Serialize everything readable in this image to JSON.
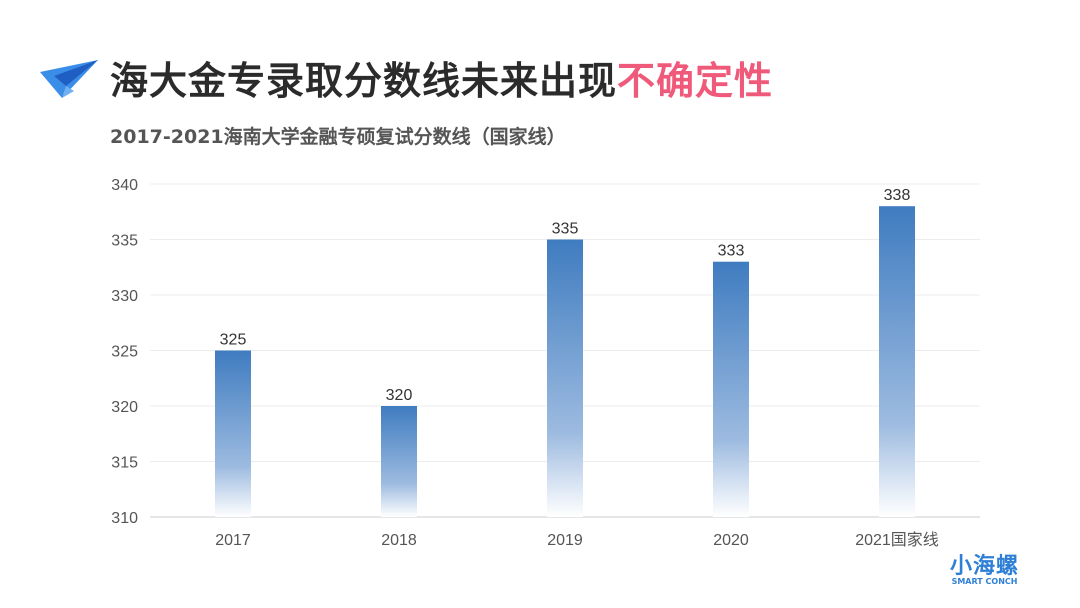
{
  "header": {
    "title_main": "海大金专录取分数线未来出现",
    "title_highlight": "不确定性",
    "accent": "#ef5a7a"
  },
  "chart_data": {
    "type": "bar",
    "title": "2017-2021海南大学金融专硕复试分数线（国家线）",
    "categories": [
      "2017",
      "2018",
      "2019",
      "2020",
      "2021国家线"
    ],
    "values": [
      325,
      320,
      335,
      333,
      338
    ],
    "ylim": [
      310,
      340
    ],
    "yticks": [
      310,
      315,
      320,
      325,
      330,
      335,
      340
    ],
    "grid": true,
    "bar_color": "#3f7cc0"
  },
  "logo": {
    "cn": "小海螺",
    "en": "SMART CONCH"
  }
}
